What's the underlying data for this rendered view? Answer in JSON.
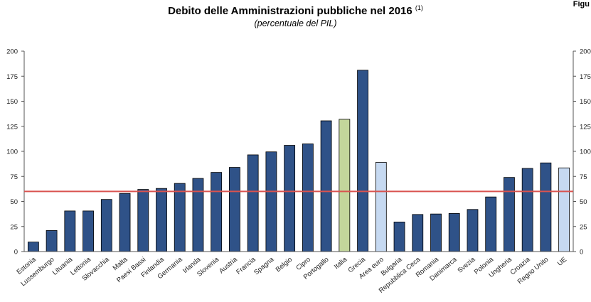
{
  "figure_label": "Figu",
  "title": "Debito delle Amministrazioni pubbliche nel 2016",
  "title_note": "(1)",
  "subtitle": "(percentuale del PIL)",
  "colors": {
    "bar": "#2f5288",
    "italy": "#c3d69b",
    "aggregate": "#c6d9f1",
    "reference_line": "#d9534f",
    "bar_outline": "#000000"
  },
  "chart_data": {
    "type": "bar",
    "title": "Debito delle Amministrazioni pubbliche nel 2016",
    "subtitle": "(percentuale del PIL)",
    "categories": [
      "Estonia",
      "Lussemburgo",
      "Lituania",
      "Lettonia",
      "Slovacchia",
      "Malta",
      "Paesi Bassi",
      "Finlandia",
      "Germania",
      "Irlanda",
      "Slovenia",
      "Austria",
      "Francia",
      "Spagna",
      "Belgio",
      "Cipro",
      "Portogallo",
      "Italia",
      "Grecia",
      "Area euro",
      "Bulgaria",
      "Repubblica Ceca",
      "Romania",
      "Danimarca",
      "Svezia",
      "Polonia",
      "Ungheria",
      "Croazia",
      "Regno Unito",
      "UE"
    ],
    "values": [
      9.5,
      21,
      40.5,
      40.5,
      52,
      58,
      62,
      63,
      68,
      73,
      79,
      84,
      96.5,
      99.5,
      106,
      107.5,
      130.5,
      132,
      181,
      89,
      29.5,
      37,
      37.5,
      38,
      42,
      54.5,
      74,
      83,
      88.5,
      83.5
    ],
    "highlight": {
      "Italia": "italy",
      "Area euro": "aggregate",
      "UE": "aggregate"
    },
    "reference_line": 60,
    "ylim": [
      0,
      200
    ],
    "yticks": [
      0,
      25,
      50,
      75,
      100,
      125,
      150,
      175,
      200
    ],
    "xlabel": "",
    "ylabel": "",
    "grid": false
  }
}
